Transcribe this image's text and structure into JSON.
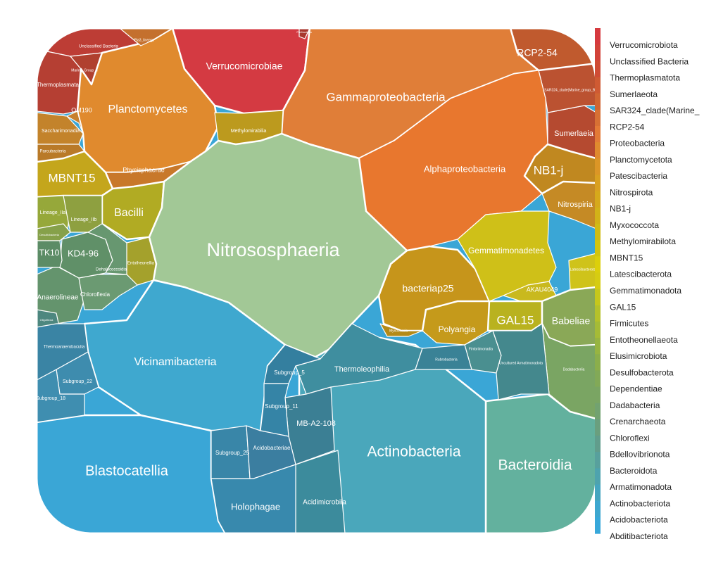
{
  "chart_data": {
    "type": "voronoi-treemap",
    "legend": {
      "placement": "right",
      "entries": [
        {
          "name": "Verrucomicrobiota",
          "color": "#d63a3f"
        },
        {
          "name": "Unclassified Bacteria",
          "color": "#d2433a"
        },
        {
          "name": "Thermoplasmatota",
          "color": "#cf4c35"
        },
        {
          "name": "Sumerlaeota",
          "color": "#cf5a33"
        },
        {
          "name": "SAR324_clade(Marine_",
          "color": "#d06532"
        },
        {
          "name": "RCP2-54",
          "color": "#d77034"
        },
        {
          "name": "Proteobacteria",
          "color": "#e37a36"
        },
        {
          "name": "Planctomycetota",
          "color": "#e08a2e"
        },
        {
          "name": "Patescibacteria",
          "color": "#dc9626"
        },
        {
          "name": "Nitrospirota",
          "color": "#d9a020"
        },
        {
          "name": "NB1-j",
          "color": "#d6a91b"
        },
        {
          "name": "Myxococcota",
          "color": "#d2b218"
        },
        {
          "name": "Methylomirabilota",
          "color": "#d0bc14"
        },
        {
          "name": "MBNT15",
          "color": "#d3c50f"
        },
        {
          "name": "Latescibacterota",
          "color": "#dccf0b"
        },
        {
          "name": "Gemmatimonadota",
          "color": "#d6cc12"
        },
        {
          "name": "GAL15",
          "color": "#c6c71c"
        },
        {
          "name": "Firmicutes",
          "color": "#b5c12a"
        },
        {
          "name": "Entotheonellaeota",
          "color": "#a5bb36"
        },
        {
          "name": "Elusimicrobiota",
          "color": "#97b441"
        },
        {
          "name": "Desulfobacterota",
          "color": "#8bae4b"
        },
        {
          "name": "Dependentiae",
          "color": "#82a957"
        },
        {
          "name": "Dadabacteria",
          "color": "#7aa563"
        },
        {
          "name": "Crenarchaeota",
          "color": "#72a270"
        },
        {
          "name": "Chloroflexi",
          "color": "#6a9f7e"
        },
        {
          "name": "Bdellovibrionota",
          "color": "#619d8c"
        },
        {
          "name": "Bacteroidota",
          "color": "#58a09d"
        },
        {
          "name": "Armatimonadota",
          "color": "#4ea3ae"
        },
        {
          "name": "Actinobacteriota",
          "color": "#45a5bf"
        },
        {
          "name": "Acidobacteriota",
          "color": "#3ea7cf"
        },
        {
          "name": "Abditibacteriota",
          "color": "#38a8da"
        }
      ]
    },
    "cells": [
      {
        "label": "Verrucomicrobiae",
        "phylum": "Verrucomicrobiota",
        "color": "#d43a42"
      },
      {
        "label": "Unclassified Bacteria",
        "phylum": "Unclassified Bacteria",
        "color": "#bd3d35"
      },
      {
        "label": "Thermoplasmata",
        "phylum": "Thermoplasmatota",
        "color": "#b53f33"
      },
      {
        "label": "Marine_Group_II",
        "phylum": "Thermoplasmatota",
        "color": "#b0402f"
      },
      {
        "label": "Poribacteria",
        "phylum": "Thermoplasmatota",
        "color": "#a8362e"
      },
      {
        "label": "Sumerlaeia",
        "phylum": "Sumerlaeota",
        "color": "#b54a30"
      },
      {
        "label": "SAR324_clade(Marine_group_B)",
        "phylum": "SAR324_clade(Marine_",
        "color": "#bb5231"
      },
      {
        "label": "RCP2-54",
        "phylum": "RCP2-54",
        "color": "#c05a2e"
      },
      {
        "label": "Gammaproteobacteria",
        "phylum": "Proteobacteria",
        "color": "#e07e38"
      },
      {
        "label": "Alphaproteobacteria",
        "phylum": "Proteobacteria",
        "color": "#e8772e"
      },
      {
        "label": "Planctomycetes",
        "phylum": "Planctomycetota",
        "color": "#e08a2e"
      },
      {
        "label": "Phycisphaerae",
        "phylum": "Planctomycetota",
        "color": "#c8782a"
      },
      {
        "label": "OM190",
        "phylum": "Planctomycetota",
        "color": "#c7802e"
      },
      {
        "label": "Pla3_lineage",
        "phylum": "Planctomycetota",
        "color": "#c4702e"
      },
      {
        "label": "Saccharimonadia",
        "phylum": "Patescibacteria",
        "color": "#c3832b"
      },
      {
        "label": "Parcubacteria",
        "phylum": "Patescibacteria",
        "color": "#b97a28"
      },
      {
        "label": "Nitrospiria",
        "phylum": "Nitrospirota",
        "color": "#c58a25"
      },
      {
        "label": "NB1-j",
        "phylum": "NB1-j",
        "color": "#c08820"
      },
      {
        "label": "Polyangia",
        "phylum": "Myxococcota",
        "color": "#c59a1b"
      },
      {
        "label": "bacteriap25",
        "phylum": "Myxococcota",
        "color": "#c6951b"
      },
      {
        "label": "Myxococcia",
        "phylum": "Myxococcota",
        "color": "#b38a18"
      },
      {
        "label": "Methylomirabilia",
        "phylum": "Methylomirabilota",
        "color": "#bc9a1e"
      },
      {
        "label": "MBNT15",
        "phylum": "MBNT15",
        "color": "#c4a61c"
      },
      {
        "label": "Latescibacterota",
        "phylum": "Latescibacterota",
        "color": "#cfc31a"
      },
      {
        "label": "Gemmatimonadetes",
        "phylum": "Gemmatimonadota",
        "color": "#cfc018"
      },
      {
        "label": "AKAU4049",
        "phylum": "Gemmatimonadota",
        "color": "#c9b91e"
      },
      {
        "label": "GAL15",
        "phylum": "GAL15",
        "color": "#b9b21f"
      },
      {
        "label": "Bacilli",
        "phylum": "Firmicutes",
        "color": "#b1ab23"
      },
      {
        "label": "Entotheonellia",
        "phylum": "Entotheonellaeota",
        "color": "#a4a12c"
      },
      {
        "label": "Lineage_IIa",
        "phylum": "Elusimicrobiota",
        "color": "#96a83a"
      },
      {
        "label": "Lineage_IIb",
        "phylum": "Elusimicrobiota",
        "color": "#8ea040"
      },
      {
        "label": "Desulfobacteria",
        "phylum": "Desulfobacterota",
        "color": "#86a14a"
      },
      {
        "label": "Babeliae",
        "phylum": "Dependentiae",
        "color": "#8aa857"
      },
      {
        "label": "Dadabacteriia",
        "phylum": "Dadabacteria",
        "color": "#7aa563"
      },
      {
        "label": "Nitrososphaeria",
        "phylum": "Crenarchaeota",
        "color": "#a2c896"
      },
      {
        "label": "Anaerolineae",
        "phylum": "Chloroflexi",
        "color": "#64946d"
      },
      {
        "label": "Chloroflexia",
        "phylum": "Chloroflexi",
        "color": "#6b9a72"
      },
      {
        "label": "KD4-96",
        "phylum": "Chloroflexi",
        "color": "#609068"
      },
      {
        "label": "TK10",
        "phylum": "Chloroflexi",
        "color": "#5c8c66"
      },
      {
        "label": "Dehalococcoidia",
        "phylum": "Chloroflexi",
        "color": "#679770"
      },
      {
        "label": "Oligoflexia",
        "phylum": "Bdellovibrionota",
        "color": "#4d877f"
      },
      {
        "label": "Bacteroidia",
        "phylum": "Bacteroidota",
        "color": "#63b19e"
      },
      {
        "label": "Fimbriimonadia",
        "phylum": "Armatimonadota",
        "color": "#4a8f90"
      },
      {
        "label": "Uncultured Armatimonadota",
        "phylum": "Armatimonadota",
        "color": "#44888d"
      },
      {
        "label": "Actinobacteria",
        "phylum": "Actinobacteriota",
        "color": "#4aa7bb"
      },
      {
        "label": "Thermoleophilia",
        "phylum": "Actinobacteriota",
        "color": "#3f8e9f"
      },
      {
        "label": "Acidimicrobiia",
        "phylum": "Actinobacteriota",
        "color": "#3c8b9c"
      },
      {
        "label": "MB-A2-108",
        "phylum": "Actinobacteriota",
        "color": "#3b7f94"
      },
      {
        "label": "Rubrobacteria",
        "phylum": "Actinobacteriota",
        "color": "#3a8296"
      },
      {
        "label": "Blastocatellia",
        "phylum": "Acidobacteriota",
        "color": "#3aa6d6"
      },
      {
        "label": "Vicinamibacteria",
        "phylum": "Acidobacteriota",
        "color": "#3fa8cf"
      },
      {
        "label": "Holophagae",
        "phylum": "Acidobacteriota",
        "color": "#3889ad"
      },
      {
        "label": "Subgroup_5",
        "phylum": "Acidobacteriota",
        "color": "#347f9f"
      },
      {
        "label": "Subgroup_11",
        "phylum": "Acidobacteriota",
        "color": "#3584a6"
      },
      {
        "label": "Subgroup_25",
        "phylum": "Acidobacteriota",
        "color": "#3986a8"
      },
      {
        "label": "Acidobacteriae",
        "phylum": "Acidobacteriota",
        "color": "#3b7ea0"
      },
      {
        "label": "Subgroup_22",
        "phylum": "Acidobacteriota",
        "color": "#3e8cae"
      },
      {
        "label": "Subgroup_18",
        "phylum": "Acidobacteriota",
        "color": "#3f8eb0"
      },
      {
        "label": "Thermoanaerobaculia",
        "phylum": "Acidobacteriota",
        "color": "#3a84a4"
      }
    ]
  }
}
